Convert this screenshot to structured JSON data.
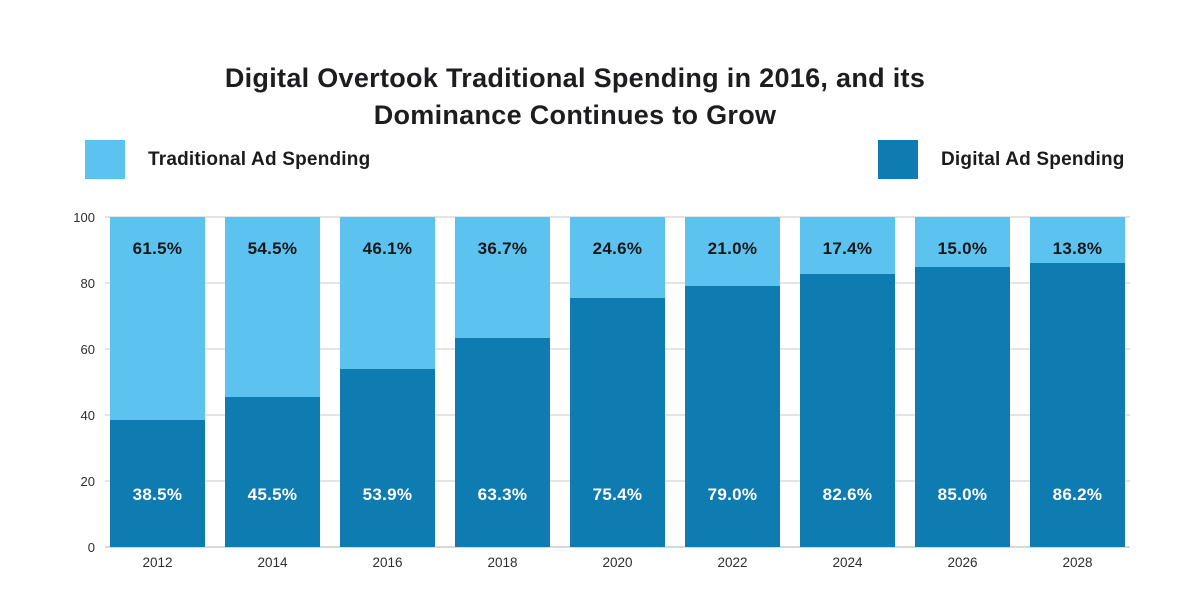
{
  "title": {
    "line1": "Digital Overtook Traditional Spending in 2016, and its",
    "line2": "Dominance Continues to Grow"
  },
  "legend": [
    {
      "label": "Traditional Ad Spending",
      "color": "#5CC3F1"
    },
    {
      "label": "Digital Ad Spending",
      "color": "#0E7BB1"
    }
  ],
  "colors": {
    "traditional": "#5CC3F1",
    "digital": "#0E7BB1",
    "gridline": "#E4E4E4",
    "axis_text": "#2E2E2E",
    "title_text": "#1D1D1F",
    "label_on_light": "#171717",
    "label_on_dark": "#FFFFFF"
  },
  "chart_data": {
    "type": "bar",
    "stacked": true,
    "title": "Digital Overtook Traditional Spending in 2016, and its Dominance Continues to Grow",
    "categories": [
      "2012",
      "2014",
      "2016",
      "2018",
      "2020",
      "2022",
      "2024",
      "2026",
      "2028"
    ],
    "series": [
      {
        "name": "Digital Ad Spending",
        "color": "#0E7BB1",
        "values": [
          38.5,
          45.5,
          53.9,
          63.3,
          75.4,
          79.0,
          82.6,
          85.0,
          86.2
        ],
        "labels": [
          "38.5%",
          "45.5%",
          "53.9%",
          "63.3%",
          "75.4%",
          "79.0%",
          "82.6%",
          "85.0%",
          "86.2%"
        ],
        "label_color": "#FFFFFF"
      },
      {
        "name": "Traditional Ad Spending",
        "color": "#5CC3F1",
        "values": [
          61.5,
          54.5,
          46.1,
          36.7,
          24.6,
          21.0,
          17.4,
          15.0,
          13.8
        ],
        "labels": [
          "61.5%",
          "54.5%",
          "46.1%",
          "36.7%",
          "24.6%",
          "21.0%",
          "17.4%",
          "15.0%",
          "13.8%"
        ],
        "label_color": "#171717"
      }
    ],
    "xlabel": "",
    "ylabel": "",
    "ylim": [
      0,
      100
    ],
    "yticks": [
      0,
      20,
      40,
      60,
      80,
      100
    ],
    "grid": true,
    "legend_position": "top"
  }
}
